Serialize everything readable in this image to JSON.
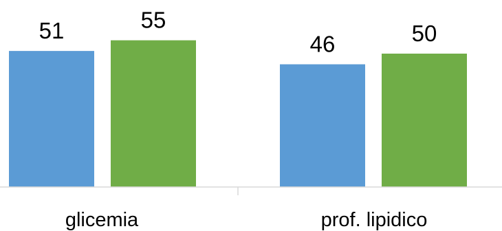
{
  "chart_data": {
    "type": "bar",
    "categories": [
      "glicemia",
      "prof. lipidico"
    ],
    "series": [
      {
        "values": [
          51,
          46
        ],
        "color": "#5b9bd5"
      },
      {
        "values": [
          55,
          50
        ],
        "color": "#70ad47"
      }
    ],
    "title": "",
    "xlabel": "",
    "ylabel": "",
    "ylim": [
      0,
      60
    ],
    "grid": false,
    "legend": "none",
    "data_labels": true
  }
}
